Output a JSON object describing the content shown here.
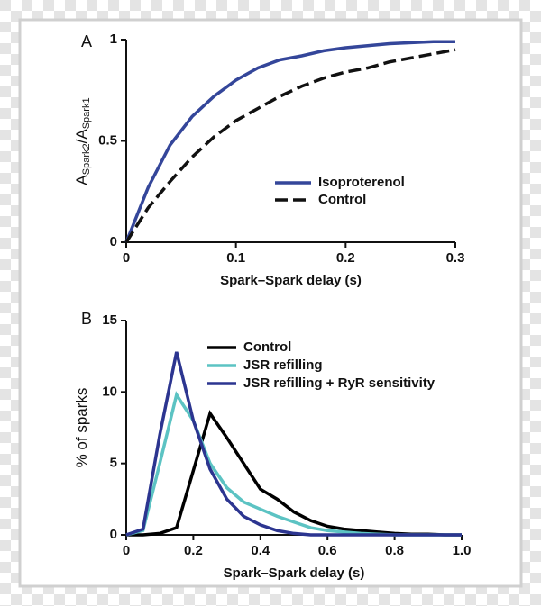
{
  "chart_data": [
    {
      "type": "line",
      "panel": "A",
      "xlabel": "Spark–Spark delay (s)",
      "ylabel": [
        "A",
        "Spark2",
        "/A",
        "Spark1"
      ],
      "x": [
        0,
        0.02,
        0.04,
        0.06,
        0.08,
        0.1,
        0.12,
        0.14,
        0.16,
        0.18,
        0.2,
        0.22,
        0.24,
        0.26,
        0.28,
        0.3
      ],
      "series": [
        {
          "name": "Isoproterenol",
          "color": "#34469a",
          "dash": false,
          "values": [
            0,
            0.27,
            0.48,
            0.62,
            0.72,
            0.8,
            0.86,
            0.9,
            0.92,
            0.945,
            0.96,
            0.97,
            0.98,
            0.985,
            0.99,
            0.99
          ]
        },
        {
          "name": "Control",
          "color": "#111111",
          "dash": true,
          "values": [
            0,
            0.17,
            0.3,
            0.42,
            0.52,
            0.6,
            0.66,
            0.72,
            0.77,
            0.81,
            0.84,
            0.86,
            0.89,
            0.91,
            0.93,
            0.95
          ]
        }
      ],
      "xlim": [
        0,
        0.3
      ],
      "xticks": [
        0,
        0.1,
        0.2,
        0.3
      ],
      "ylim": [
        0,
        1
      ],
      "yticks": [
        0,
        0.5,
        1
      ]
    },
    {
      "type": "line",
      "panel": "B",
      "xlabel": "Spark–Spark delay (s)",
      "ylabel": [
        "% of sparks"
      ],
      "x": [
        0,
        0.05,
        0.1,
        0.15,
        0.2,
        0.25,
        0.3,
        0.35,
        0.4,
        0.45,
        0.5,
        0.55,
        0.6,
        0.65,
        0.7,
        0.75,
        0.8,
        0.85,
        0.9,
        0.95,
        1
      ],
      "series": [
        {
          "name": "Control",
          "color": "#000000",
          "dash": false,
          "values": [
            0,
            0,
            0.1,
            0.5,
            4.5,
            8.5,
            6.8,
            5.0,
            3.2,
            2.5,
            1.6,
            1.0,
            0.6,
            0.4,
            0.3,
            0.2,
            0.1,
            0.05,
            0.05,
            0,
            0
          ]
        },
        {
          "name": "JSR refilling",
          "color": "#5cc3c3",
          "dash": false,
          "values": [
            0,
            0.3,
            5,
            9.8,
            8,
            5,
            3.3,
            2.3,
            1.8,
            1.3,
            0.9,
            0.5,
            0.3,
            0.2,
            0.1,
            0.05,
            0,
            0,
            0,
            0,
            0
          ]
        },
        {
          "name": "JSR refilling + RyR sensitivity",
          "color": "#2c3590",
          "dash": false,
          "values": [
            0,
            0.4,
            7,
            12.8,
            8,
            4.6,
            2.5,
            1.3,
            0.7,
            0.3,
            0.1,
            0,
            0,
            0,
            0,
            0,
            0,
            0,
            0,
            0,
            0
          ]
        }
      ],
      "xlim": [
        0,
        1
      ],
      "xticks": [
        0,
        0.2,
        0.4,
        0.6,
        0.8,
        {
          "value": 1,
          "label": "1.0"
        }
      ],
      "ylim": [
        0,
        15
      ],
      "yticks": [
        0,
        5,
        10,
        15
      ]
    }
  ]
}
